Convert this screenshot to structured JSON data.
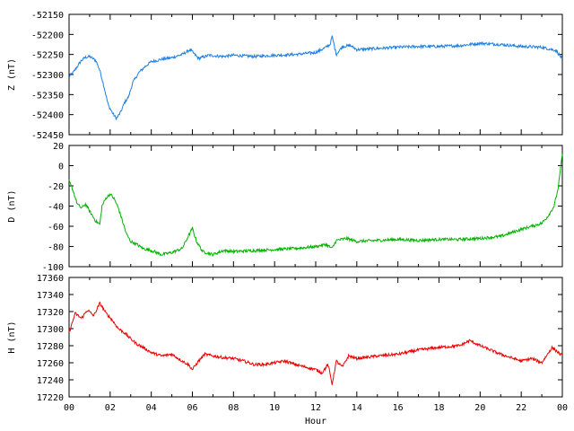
{
  "chart_data": [
    {
      "type": "line",
      "ylabel": "Z (nT)",
      "ylim": [
        -52450,
        -52150
      ],
      "yticks": [
        -52150,
        -52200,
        -52250,
        -52300,
        -52350,
        -52400,
        -52450
      ],
      "color": "#1e7fe0",
      "x": [
        0,
        0.2,
        0.4,
        0.6,
        0.8,
        1.0,
        1.3,
        1.5,
        1.7,
        1.9,
        2.1,
        2.3,
        2.5,
        2.7,
        2.9,
        3.1,
        3.4,
        3.7,
        4.0,
        4.5,
        5.0,
        5.5,
        5.9,
        6.3,
        6.8,
        7.5,
        8.0,
        9,
        10,
        11,
        12,
        12.4,
        12.7,
        12.8,
        13.0,
        13.3,
        13.7,
        14.0,
        15,
        16,
        17,
        18,
        19,
        20,
        21,
        22,
        23,
        23.7,
        24
      ],
      "y": [
        -52305,
        -52295,
        -52280,
        -52265,
        -52257,
        -52255,
        -52265,
        -52290,
        -52330,
        -52375,
        -52395,
        -52410,
        -52395,
        -52370,
        -52355,
        -52320,
        -52295,
        -52280,
        -52268,
        -52262,
        -52258,
        -52250,
        -52238,
        -52260,
        -52252,
        -52255,
        -52252,
        -52255,
        -52252,
        -52250,
        -52245,
        -52235,
        -52225,
        -52205,
        -52250,
        -52230,
        -52228,
        -52238,
        -52235,
        -52232,
        -52230,
        -52230,
        -52228,
        -52222,
        -52225,
        -52230,
        -52232,
        -52240,
        -52262
      ]
    },
    {
      "type": "line",
      "ylabel": "D (nT)",
      "ylim": [
        -100,
        20
      ],
      "yticks": [
        20,
        0,
        -20,
        -40,
        -60,
        -80,
        -100
      ],
      "color": "#00b400",
      "x": [
        0,
        0.2,
        0.4,
        0.6,
        0.8,
        1.0,
        1.3,
        1.5,
        1.6,
        1.8,
        2.0,
        2.2,
        2.4,
        2.6,
        2.8,
        3.0,
        3.3,
        3.6,
        4.0,
        4.5,
        5.0,
        5.5,
        5.8,
        6.0,
        6.2,
        6.5,
        7.0,
        7.5,
        8.0,
        9,
        10,
        11,
        12,
        12.5,
        12.8,
        13.0,
        13.5,
        14,
        15,
        16,
        17,
        18,
        19,
        20,
        21,
        22,
        22.5,
        23.0,
        23.3,
        23.6,
        23.8,
        24
      ],
      "y": [
        -15,
        -25,
        -38,
        -42,
        -38,
        -45,
        -55,
        -58,
        -40,
        -32,
        -28,
        -33,
        -42,
        -55,
        -68,
        -75,
        -78,
        -82,
        -84,
        -88,
        -86,
        -82,
        -70,
        -62,
        -75,
        -85,
        -88,
        -84,
        -85,
        -84,
        -83,
        -82,
        -80,
        -78,
        -82,
        -74,
        -72,
        -75,
        -74,
        -73,
        -74,
        -73,
        -73,
        -72,
        -70,
        -63,
        -60,
        -57,
        -50,
        -40,
        -22,
        12
      ]
    },
    {
      "type": "line",
      "ylabel": "H (nT)",
      "xlabel": "Hour",
      "ylim": [
        17220,
        17360
      ],
      "yticks": [
        17360,
        17340,
        17320,
        17300,
        17280,
        17260,
        17240,
        17220
      ],
      "xticks": [
        "00",
        "02",
        "04",
        "06",
        "08",
        "10",
        "12",
        "14",
        "16",
        "18",
        "20",
        "22",
        "00"
      ],
      "color": "#ee0000",
      "x": [
        0,
        0.3,
        0.6,
        0.9,
        1.2,
        1.5,
        1.8,
        2.1,
        2.4,
        2.7,
        3.0,
        3.3,
        3.6,
        4.0,
        4.5,
        5.0,
        5.5,
        5.8,
        6.0,
        6.3,
        6.6,
        7.0,
        7.5,
        8.0,
        8.5,
        9.0,
        9.5,
        10,
        10.5,
        11,
        11.5,
        12,
        12.3,
        12.6,
        12.8,
        13.0,
        13.3,
        13.6,
        14,
        15,
        16,
        17,
        18,
        19,
        19.5,
        20,
        21,
        22,
        22.5,
        23,
        23.5,
        24
      ],
      "y": [
        17295,
        17318,
        17312,
        17322,
        17315,
        17330,
        17318,
        17310,
        17300,
        17295,
        17288,
        17282,
        17278,
        17272,
        17268,
        17270,
        17262,
        17258,
        17252,
        17262,
        17270,
        17268,
        17266,
        17265,
        17262,
        17258,
        17258,
        17260,
        17262,
        17258,
        17255,
        17252,
        17248,
        17258,
        17235,
        17262,
        17255,
        17268,
        17265,
        17268,
        17270,
        17275,
        17278,
        17280,
        17286,
        17280,
        17270,
        17262,
        17265,
        17260,
        17278,
        17268
      ]
    }
  ]
}
